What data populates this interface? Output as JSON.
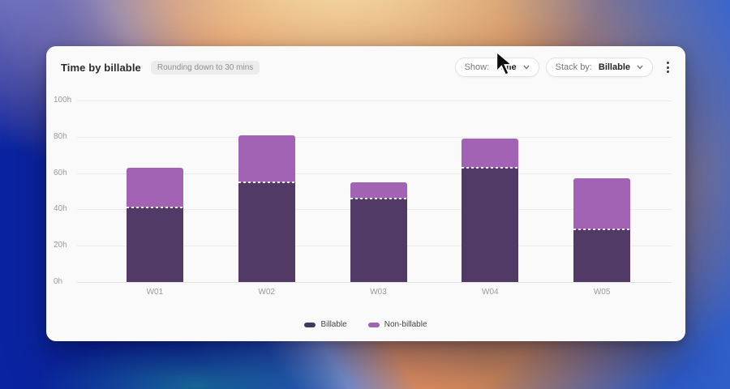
{
  "card": {
    "title": "Time by billable",
    "badge": "Rounding down to 30 mins"
  },
  "controls": {
    "show": {
      "label": "Show:",
      "value": "Time"
    },
    "stack_by": {
      "label": "Stack by:",
      "value": "Billable"
    }
  },
  "chart_data": {
    "type": "bar",
    "stacked": true,
    "title": "Time by billable",
    "categories": [
      "W01",
      "W02",
      "W03",
      "W04",
      "W05"
    ],
    "series": [
      {
        "name": "Billable",
        "color": "#523a66",
        "values": [
          41,
          55,
          46,
          63,
          29
        ]
      },
      {
        "name": "Non-billable",
        "color": "#a263b5",
        "values": [
          22,
          26,
          9,
          16,
          28
        ]
      }
    ],
    "y_ticks": [
      {
        "value": 0,
        "label": "0h"
      },
      {
        "value": 20,
        "label": "20h"
      },
      {
        "value": 40,
        "label": "40h"
      },
      {
        "value": 60,
        "label": "60h"
      },
      {
        "value": 80,
        "label": "80h"
      },
      {
        "value": 100,
        "label": "100h"
      }
    ],
    "ylim": [
      0,
      100
    ],
    "grid": true,
    "legend_position": "bottom"
  },
  "legend": {
    "items": [
      {
        "label": "Billable",
        "color": "#403a5e"
      },
      {
        "label": "Non-billable",
        "color": "#9f63b4"
      }
    ]
  }
}
